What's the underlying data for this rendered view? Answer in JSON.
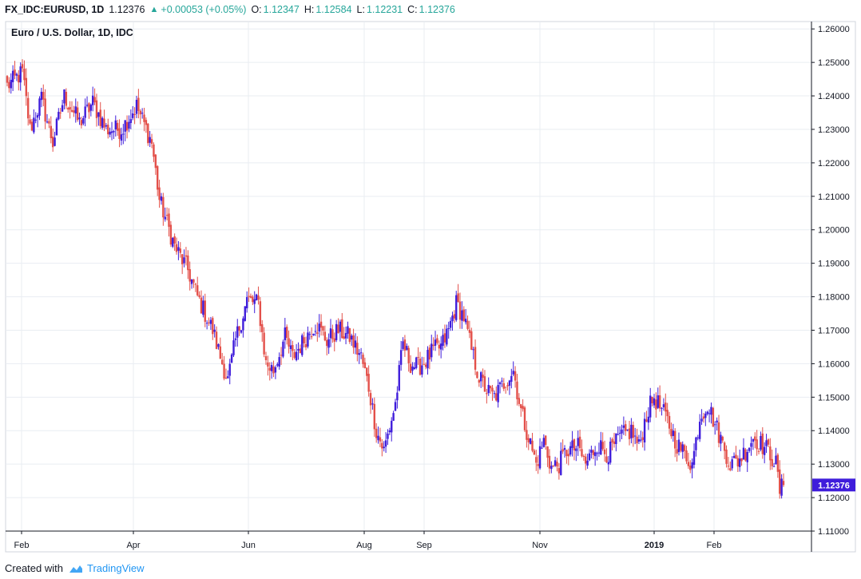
{
  "header": {
    "symbol": "FX_IDC:EURUSD, 1D",
    "last": "1.12376",
    "change": "+0.00053 (+0.05%)",
    "open_label": "O:",
    "open": "1.12347",
    "high_label": "H:",
    "high": "1.12584",
    "low_label": "L:",
    "low": "1.12231",
    "close_label": "C:",
    "close": "1.12376"
  },
  "footer": {
    "created_with": "Created with",
    "brand": "TradingView"
  },
  "colors": {
    "up": "#3f1ddb",
    "down": "#e3504a",
    "grid": "#e9edf2",
    "axis": "#131722",
    "price_tag": "#3f1ddb"
  },
  "chart_data": {
    "type": "candlestick",
    "title": "Euro / U.S. Dollar, 1D, IDC",
    "y_ticks": [
      "1.26000",
      "1.25000",
      "1.24000",
      "1.23000",
      "1.22000",
      "1.21000",
      "1.20000",
      "1.19000",
      "1.18000",
      "1.17000",
      "1.16000",
      "1.15000",
      "1.14000",
      "1.13000",
      "1.12000",
      "1.11000"
    ],
    "ylim": [
      1.11,
      1.2622
    ],
    "x_ticks": [
      {
        "label": "Feb",
        "bold": false
      },
      {
        "label": "Apr",
        "bold": false
      },
      {
        "label": "Jun",
        "bold": false
      },
      {
        "label": "Aug",
        "bold": false
      },
      {
        "label": "Sep",
        "bold": false
      },
      {
        "label": "Nov",
        "bold": false
      },
      {
        "label": "2019",
        "bold": true
      },
      {
        "label": "Feb",
        "bold": false
      }
    ],
    "last_price": "1.12376",
    "last_value": 1.12376,
    "anchors": [
      [
        0,
        1.243
      ],
      [
        8,
        1.247
      ],
      [
        12,
        1.23
      ],
      [
        18,
        1.239
      ],
      [
        24,
        1.226
      ],
      [
        30,
        1.24
      ],
      [
        38,
        1.232
      ],
      [
        45,
        1.238
      ],
      [
        52,
        1.23
      ],
      [
        60,
        1.23
      ],
      [
        68,
        1.237
      ],
      [
        76,
        1.226
      ],
      [
        80,
        1.209
      ],
      [
        88,
        1.195
      ],
      [
        95,
        1.188
      ],
      [
        100,
        1.18
      ],
      [
        104,
        1.175
      ],
      [
        108,
        1.17
      ],
      [
        112,
        1.162
      ],
      [
        116,
        1.155
      ],
      [
        120,
        1.167
      ],
      [
        126,
        1.179
      ],
      [
        132,
        1.178
      ],
      [
        136,
        1.16
      ],
      [
        140,
        1.158
      ],
      [
        146,
        1.168
      ],
      [
        150,
        1.162
      ],
      [
        156,
        1.167
      ],
      [
        162,
        1.172
      ],
      [
        168,
        1.167
      ],
      [
        174,
        1.17
      ],
      [
        180,
        1.168
      ],
      [
        186,
        1.162
      ],
      [
        190,
        1.153
      ],
      [
        194,
        1.14
      ],
      [
        198,
        1.134
      ],
      [
        204,
        1.148
      ],
      [
        208,
        1.166
      ],
      [
        212,
        1.16
      ],
      [
        216,
        1.159
      ],
      [
        220,
        1.161
      ],
      [
        224,
        1.164
      ],
      [
        228,
        1.165
      ],
      [
        232,
        1.17
      ],
      [
        236,
        1.178
      ],
      [
        240,
        1.174
      ],
      [
        244,
        1.164
      ],
      [
        248,
        1.156
      ],
      [
        252,
        1.152
      ],
      [
        256,
        1.15
      ],
      [
        262,
        1.155
      ],
      [
        266,
        1.158
      ],
      [
        270,
        1.146
      ],
      [
        274,
        1.138
      ],
      [
        278,
        1.13
      ],
      [
        282,
        1.137
      ],
      [
        286,
        1.129
      ],
      [
        290,
        1.13
      ],
      [
        294,
        1.134
      ],
      [
        300,
        1.135
      ],
      [
        304,
        1.13
      ],
      [
        310,
        1.136
      ],
      [
        316,
        1.133
      ],
      [
        322,
        1.138
      ],
      [
        328,
        1.14
      ],
      [
        332,
        1.135
      ],
      [
        336,
        1.145
      ],
      [
        340,
        1.15
      ],
      [
        346,
        1.144
      ],
      [
        352,
        1.136
      ],
      [
        356,
        1.133
      ],
      [
        360,
        1.13
      ],
      [
        364,
        1.144
      ],
      [
        368,
        1.148
      ],
      [
        372,
        1.142
      ],
      [
        376,
        1.136
      ],
      [
        380,
        1.13
      ],
      [
        384,
        1.131
      ],
      [
        388,
        1.134
      ],
      [
        392,
        1.138
      ],
      [
        396,
        1.136
      ],
      [
        400,
        1.134
      ],
      [
        404,
        1.13
      ],
      [
        406,
        1.122
      ],
      [
        408,
        1.12376
      ]
    ],
    "series_length": 409
  }
}
